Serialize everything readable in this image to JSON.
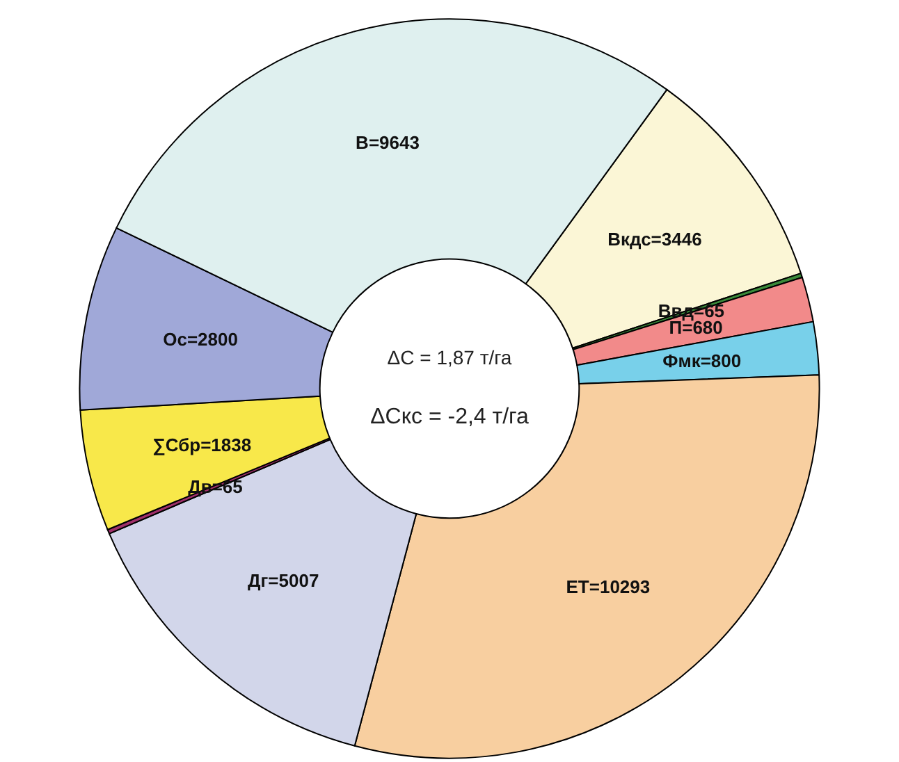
{
  "chart_data": {
    "type": "donut",
    "categories": [
      "Вкдс=3446",
      "Ввд=65",
      "П=680",
      "Фмк=800",
      "ЕТ=10293",
      "Дг=5007",
      "Дв=65",
      "∑Сбр=1838",
      "Ос=2800",
      "В=9643"
    ],
    "values": [
      3446,
      65,
      680,
      800,
      10293,
      5007,
      65,
      1838,
      2800,
      9643
    ],
    "colors": [
      "#fbf6d6",
      "#3a8a3a",
      "#f28a8a",
      "#78d0ea",
      "#f8cfa0",
      "#d2d6ea",
      "#a0306a",
      "#f8e84a",
      "#a0a8d8",
      "#dff0ef"
    ],
    "legend": false,
    "annotations": [
      "ΔC = 1,87 т/га",
      "ΔCкс = -2,4 т/га"
    ]
  }
}
